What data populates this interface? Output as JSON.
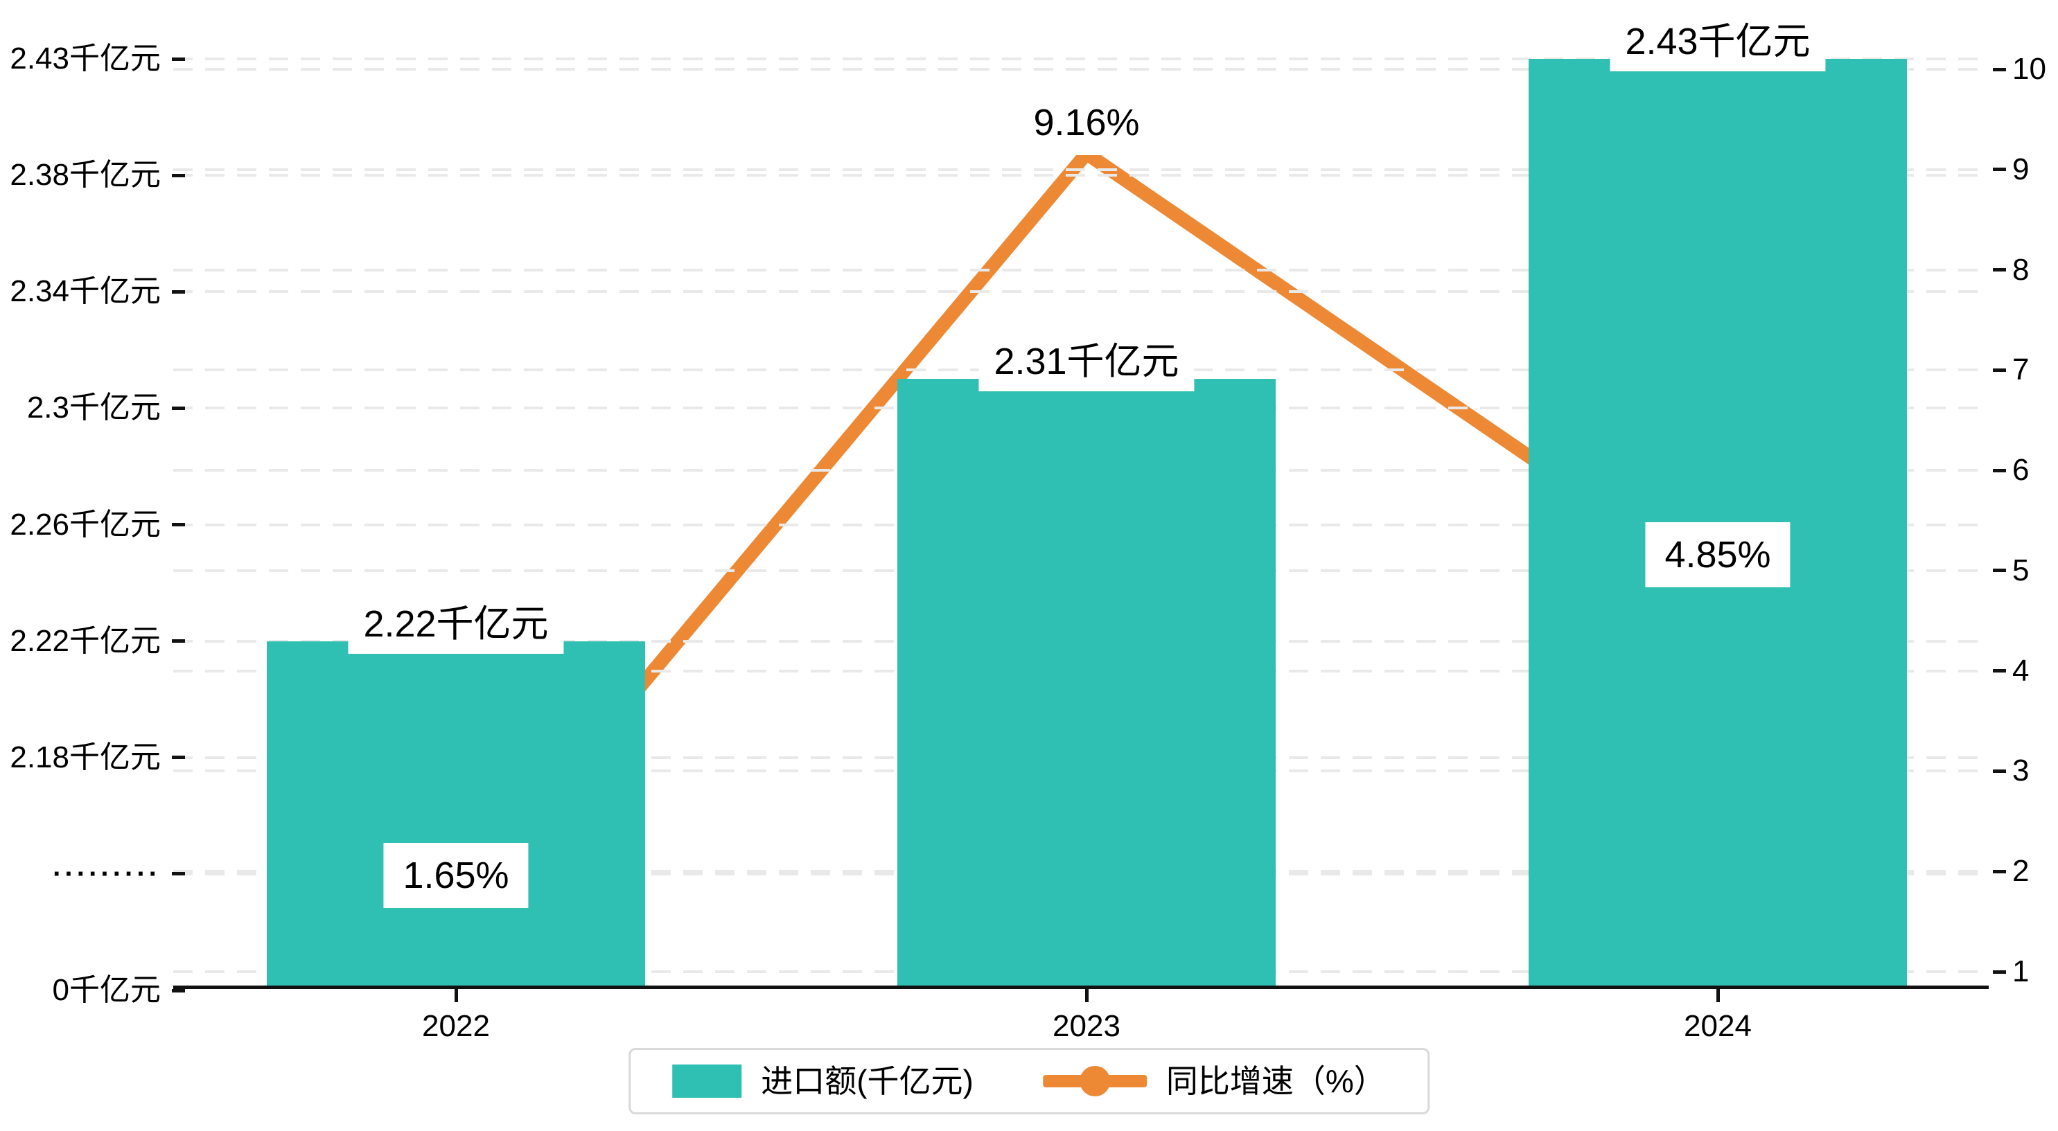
{
  "chart_data": {
    "type": "bar",
    "categories": [
      "2022",
      "2023",
      "2024"
    ],
    "series": [
      {
        "name": "进口额(千亿元)",
        "type": "bar",
        "axis": "left",
        "color": "#2FBFB3",
        "values": [
          2.22,
          2.31,
          2.43
        ],
        "data_labels": [
          "2.22千亿元",
          "2.31千亿元",
          "2.43千亿元"
        ]
      },
      {
        "name": "同比增速（%）",
        "type": "line",
        "axis": "right",
        "color": "#ED8935",
        "values": [
          1.65,
          9.16,
          4.85
        ],
        "data_labels": [
          "1.65%",
          "9.16%",
          "4.85%"
        ]
      }
    ],
    "left_axis": {
      "tick_labels": [
        "2.43千亿元",
        "2.38千亿元",
        "2.34千亿元",
        "2.3千亿元",
        "2.26千亿元",
        "2.22千亿元",
        "2.18千亿元",
        "·········",
        "0千亿元"
      ],
      "tick_values": [
        2.43,
        2.38,
        2.34,
        2.3,
        2.26,
        2.22,
        2.18,
        null,
        0
      ],
      "axis_break": true
    },
    "right_axis": {
      "tick_labels": [
        "10",
        "9",
        "8",
        "7",
        "6",
        "5",
        "4",
        "3",
        "2",
        "1"
      ],
      "range": [
        1,
        10
      ]
    },
    "legend": [
      {
        "label": "进口额(千亿元)",
        "marker": "rect",
        "color": "#2FBFB3"
      },
      {
        "label": "同比增速（%）",
        "marker": "line-dot",
        "color": "#ED8935"
      }
    ],
    "grid": true,
    "legend_position": "bottom",
    "title": "",
    "xlabel": "",
    "ylabel": ""
  }
}
